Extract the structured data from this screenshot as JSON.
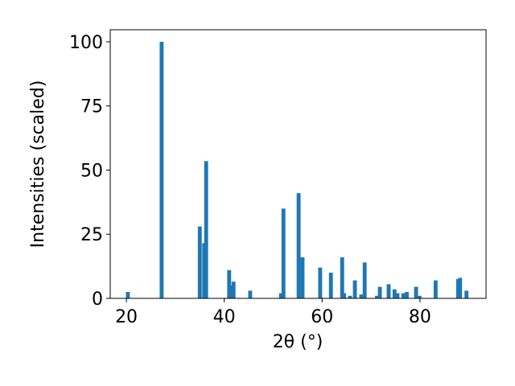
{
  "chart_data": {
    "type": "bar",
    "x_label": "2θ (°)",
    "y_label": "Intensities (scaled)",
    "color": "#1f77b4",
    "x": [
      20.3,
      27.2,
      35.0,
      35.9,
      36.3,
      41.0,
      41.5,
      41.9,
      45.3,
      51.6,
      52.1,
      55.2,
      56.0,
      59.6,
      61.8,
      64.1,
      64.5,
      65.7,
      66.7,
      68.0,
      68.7,
      71.2,
      71.8,
      73.6,
      74.8,
      75.4,
      76.6,
      77.3,
      79.2,
      79.9,
      83.2,
      87.8,
      88.2,
      89.5
    ],
    "values": [
      2.5,
      100,
      28,
      21.5,
      53.5,
      11,
      5,
      6.5,
      3,
      2,
      35,
      41,
      16,
      12,
      10,
      16,
      2,
      1,
      7,
      1.5,
      14,
      1,
      4.5,
      5.5,
      3.5,
      2,
      2,
      2.5,
      4.5,
      1,
      7,
      7.5,
      8,
      3
    ],
    "xlim": [
      16.7,
      93.5
    ],
    "ylim": [
      0,
      104.7
    ],
    "xticks": [
      20,
      40,
      60,
      80
    ],
    "yticks": [
      0,
      25,
      50,
      75,
      100
    ]
  }
}
